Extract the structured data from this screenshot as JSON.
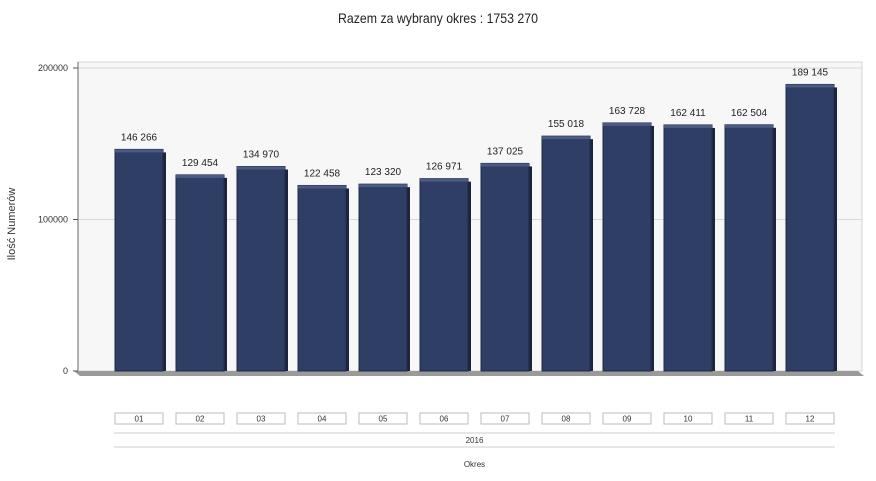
{
  "chart_data": {
    "type": "bar",
    "title": "Razem za wybrany okres : 1753 270",
    "ylabel": "Ilość Numerów",
    "xlabel": "Okres",
    "group_label": "2016",
    "categories": [
      "01",
      "02",
      "03",
      "04",
      "05",
      "06",
      "07",
      "08",
      "09",
      "10",
      "11",
      "12"
    ],
    "values": [
      146266,
      129454,
      134970,
      122458,
      123320,
      126971,
      137025,
      155018,
      163728,
      162411,
      162504,
      189145
    ],
    "value_labels": [
      "146 266",
      "129 454",
      "134 970",
      "122 458",
      "123 320",
      "126 971",
      "137 025",
      "155 018",
      "163 728",
      "162 411",
      "162 504",
      "189 145"
    ],
    "yticks": [
      "0",
      "100000",
      "200000"
    ],
    "ytick_values": [
      0,
      100000,
      200000
    ],
    "ylim": [
      0,
      200000
    ],
    "grid": true,
    "bar_color": "#2e3e64"
  }
}
